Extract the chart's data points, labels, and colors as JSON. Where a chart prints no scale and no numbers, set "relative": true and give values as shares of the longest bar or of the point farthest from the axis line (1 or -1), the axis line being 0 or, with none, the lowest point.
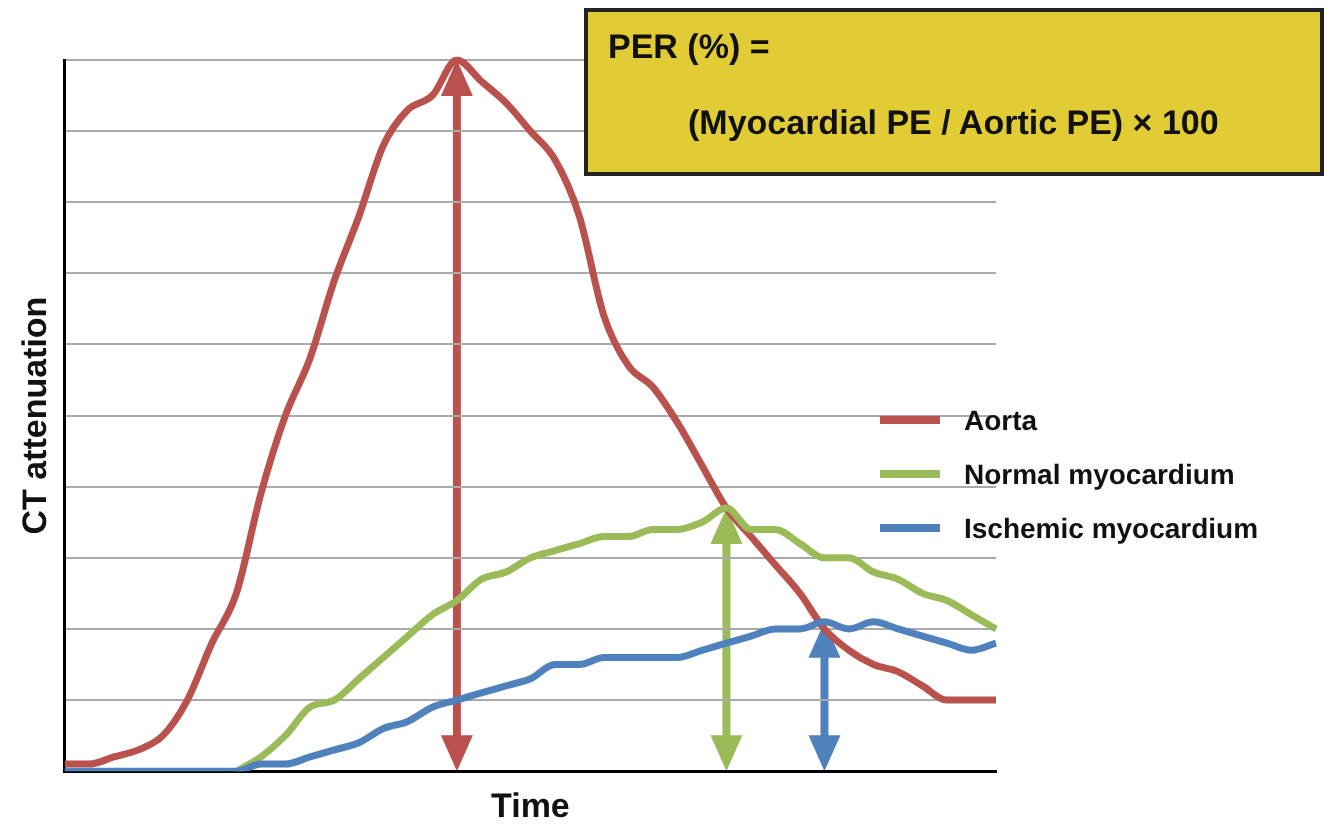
{
  "chart_data": {
    "type": "line",
    "relative": true,
    "xlabel": "Time",
    "ylabel": "CT attenuation",
    "grid": "y",
    "legend": "right",
    "marker": "none",
    "line_style": "solid",
    "annotations": [
      "PER (%) =",
      "(Myocardial PE / Aortic PE) × 100"
    ],
    "categories": [
      null,
      null,
      null,
      null,
      null,
      null,
      null,
      null,
      null,
      null,
      null,
      null,
      null,
      null,
      null,
      null,
      null,
      null,
      null,
      null,
      null,
      null,
      null,
      null,
      null,
      null,
      null,
      null,
      null,
      null,
      null,
      null,
      null,
      null,
      null,
      null,
      null,
      null,
      null
    ],
    "series": [
      {
        "name": "Aorta",
        "color": "#b9524c",
        "values": [
          0.01,
          0.01,
          0.02,
          0.03,
          0.05,
          0.1,
          0.18,
          0.25,
          0.39,
          0.5,
          0.58,
          0.69,
          0.78,
          0.88,
          0.93,
          0.95,
          1.0,
          0.97,
          0.94,
          0.9,
          0.86,
          0.78,
          0.64,
          0.57,
          0.54,
          0.49,
          0.43,
          0.37,
          0.33,
          0.29,
          0.25,
          0.2,
          0.17,
          0.15,
          0.14,
          0.12,
          0.1,
          0.1,
          0.1
        ]
      },
      {
        "name": "Normal myocardium",
        "color": "#9bbb59",
        "values": [
          null,
          null,
          null,
          null,
          null,
          null,
          null,
          0,
          0.02,
          0.05,
          0.09,
          0.1,
          0.13,
          0.16,
          0.19,
          0.22,
          0.24,
          0.27,
          0.28,
          0.3,
          0.31,
          0.32,
          0.33,
          0.33,
          0.34,
          0.34,
          0.35,
          0.37,
          0.34,
          0.34,
          0.32,
          0.3,
          0.3,
          0.28,
          0.27,
          0.25,
          0.24,
          0.22,
          0.2
        ]
      },
      {
        "name": "Ischemic myocardium",
        "color": "#4f81bd",
        "values": [
          0,
          0,
          0,
          0,
          0,
          0,
          0,
          0,
          0.01,
          0.01,
          0.02,
          0.03,
          0.04,
          0.06,
          0.07,
          0.09,
          0.1,
          0.11,
          0.12,
          0.13,
          0.15,
          0.15,
          0.16,
          0.16,
          0.16,
          0.16,
          0.17,
          0.18,
          0.19,
          0.2,
          0.2,
          0.21,
          0.2,
          0.21,
          0.2,
          0.19,
          0.18,
          0.17,
          0.18
        ]
      }
    ]
  }
}
